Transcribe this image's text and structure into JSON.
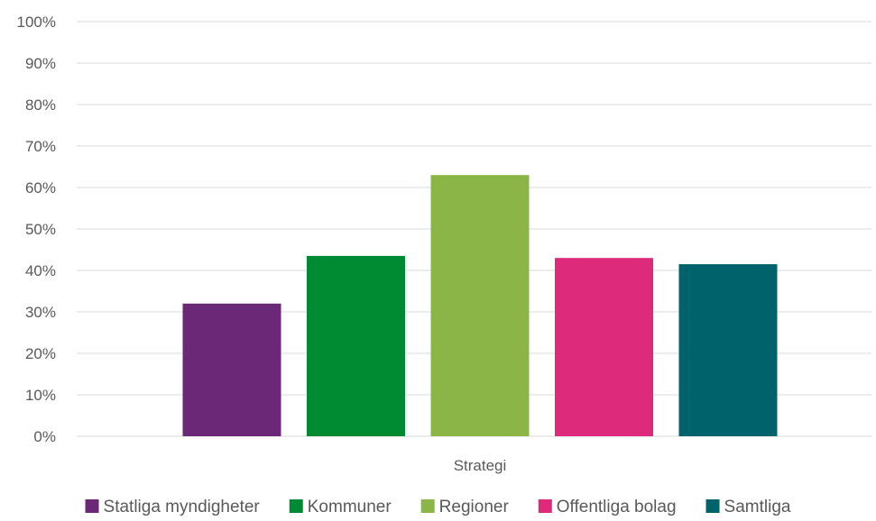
{
  "chart_data": {
    "type": "bar",
    "categories": [
      "Strategi"
    ],
    "series": [
      {
        "name": "Statliga myndigheter",
        "values": [
          32
        ],
        "color": "#6a2877"
      },
      {
        "name": "Kommuner",
        "values": [
          43.5
        ],
        "color": "#008b32"
      },
      {
        "name": "Regioner",
        "values": [
          63
        ],
        "color": "#8cb547"
      },
      {
        "name": "Offentliga bolag",
        "values": [
          43
        ],
        "color": "#de2a7b"
      },
      {
        "name": "Samtliga",
        "values": [
          41.5
        ],
        "color": "#00626a"
      }
    ],
    "ylim": [
      0,
      100
    ],
    "y_ticks": [
      "0%",
      "10%",
      "20%",
      "30%",
      "40%",
      "50%",
      "60%",
      "70%",
      "80%",
      "90%",
      "100%"
    ],
    "grid": true,
    "legend_position": "bottom",
    "gridline_color": "#d9d9d9"
  }
}
